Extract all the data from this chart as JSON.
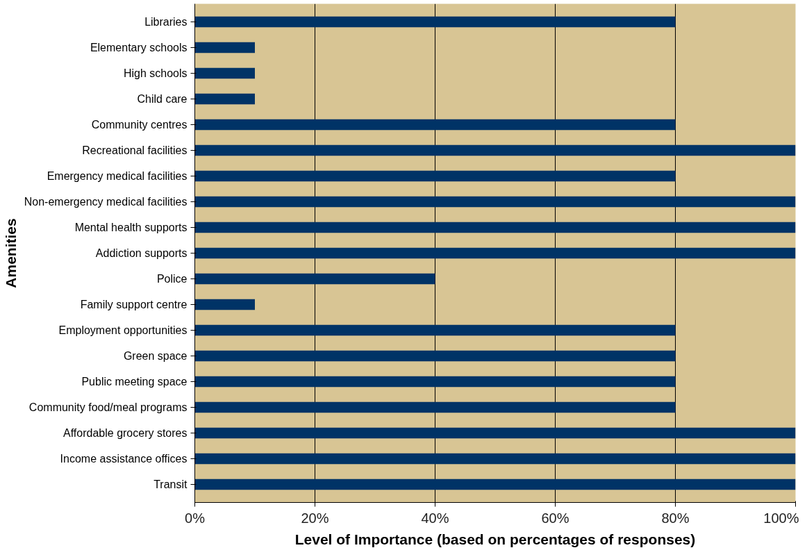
{
  "chart_data": {
    "type": "bar",
    "orientation": "horizontal",
    "xlabel": "Level of Importance (based on percentages of responses)",
    "ylabel": "Amenities",
    "categories": [
      "Libraries",
      "Elementary schools",
      "High schools",
      "Child care",
      "Community centres",
      "Recreational facilities",
      "Emergency medical facilities",
      "Non-emergency medical facilities",
      "Mental health supports",
      "Addiction supports",
      "Police",
      "Family support centre",
      "Employment opportunities",
      "Green space",
      "Public meeting space",
      "Community food/meal programs",
      "Affordable grocery stores",
      "Income assistance offices",
      "Transit"
    ],
    "values": [
      80,
      10,
      10,
      10,
      80,
      100,
      80,
      100,
      100,
      100,
      40,
      10,
      80,
      80,
      80,
      80,
      100,
      100,
      100
    ],
    "color": "#003366",
    "xlim": [
      0,
      100
    ],
    "xticks": [
      {
        "value": 0,
        "label": "0%"
      },
      {
        "value": 20,
        "label": "20%"
      },
      {
        "value": 40,
        "label": "40%"
      },
      {
        "value": 60,
        "label": "60%"
      },
      {
        "value": 80,
        "label": "80%"
      },
      {
        "value": 100,
        "label": "100%"
      }
    ],
    "grid": "x"
  }
}
